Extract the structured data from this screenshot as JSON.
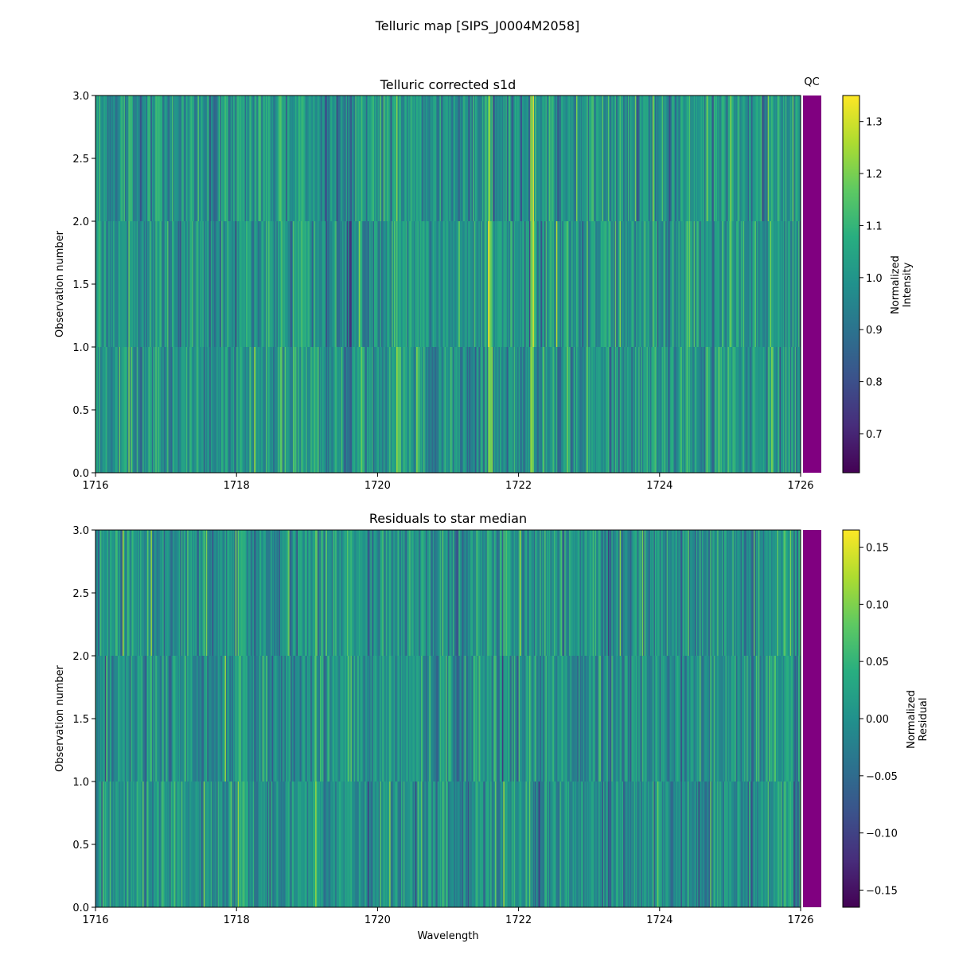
{
  "figure": {
    "suptitle": "Telluric map [SIPS_J0004M2058]",
    "qc_label": "QC",
    "qc_color": "#800080"
  },
  "chart_data": [
    {
      "type": "heatmap",
      "title": "Telluric corrected s1d",
      "xlabel": "",
      "ylabel": "Observation number",
      "xlim": [
        1716,
        1726
      ],
      "ylim": [
        0.0,
        3.0
      ],
      "xticks": [
        "1716",
        "1718",
        "1720",
        "1722",
        "1724",
        "1726"
      ],
      "yticks": [
        "0.0",
        "0.5",
        "1.0",
        "1.5",
        "2.0",
        "2.5",
        "3.0"
      ],
      "rows": 3,
      "colormap": "viridis",
      "colorbar": {
        "label_lines": [
          "Normalized",
          "Intensity"
        ],
        "range": [
          0.625,
          1.35
        ],
        "ticks": [
          "0.7",
          "0.8",
          "0.9",
          "1.0",
          "1.1",
          "1.2",
          "1.3"
        ]
      },
      "mean_value": 1.0,
      "spread": 0.09,
      "notable_wavelengths": [
        1719.3,
        1719.6,
        1720.3,
        1721.6,
        1722.2,
        1724.4,
        1725.0
      ]
    },
    {
      "type": "heatmap",
      "title": "Residuals to star median",
      "xlabel": "Wavelength",
      "ylabel": "Observation number",
      "xlim": [
        1716,
        1726
      ],
      "ylim": [
        0.0,
        3.0
      ],
      "xticks": [
        "1716",
        "1718",
        "1720",
        "1722",
        "1724",
        "1726"
      ],
      "yticks": [
        "0.0",
        "0.5",
        "1.0",
        "1.5",
        "2.0",
        "2.5",
        "3.0"
      ],
      "rows": 3,
      "colormap": "viridis",
      "colorbar": {
        "label_lines": [
          "Normalized",
          "Residual"
        ],
        "range": [
          -0.165,
          0.165
        ],
        "ticks": [
          "0.15",
          "0.10",
          "0.05",
          "0.00",
          "−0.05",
          "−0.10",
          "−0.15"
        ]
      },
      "mean_value": 0.0,
      "spread": 0.04
    }
  ]
}
